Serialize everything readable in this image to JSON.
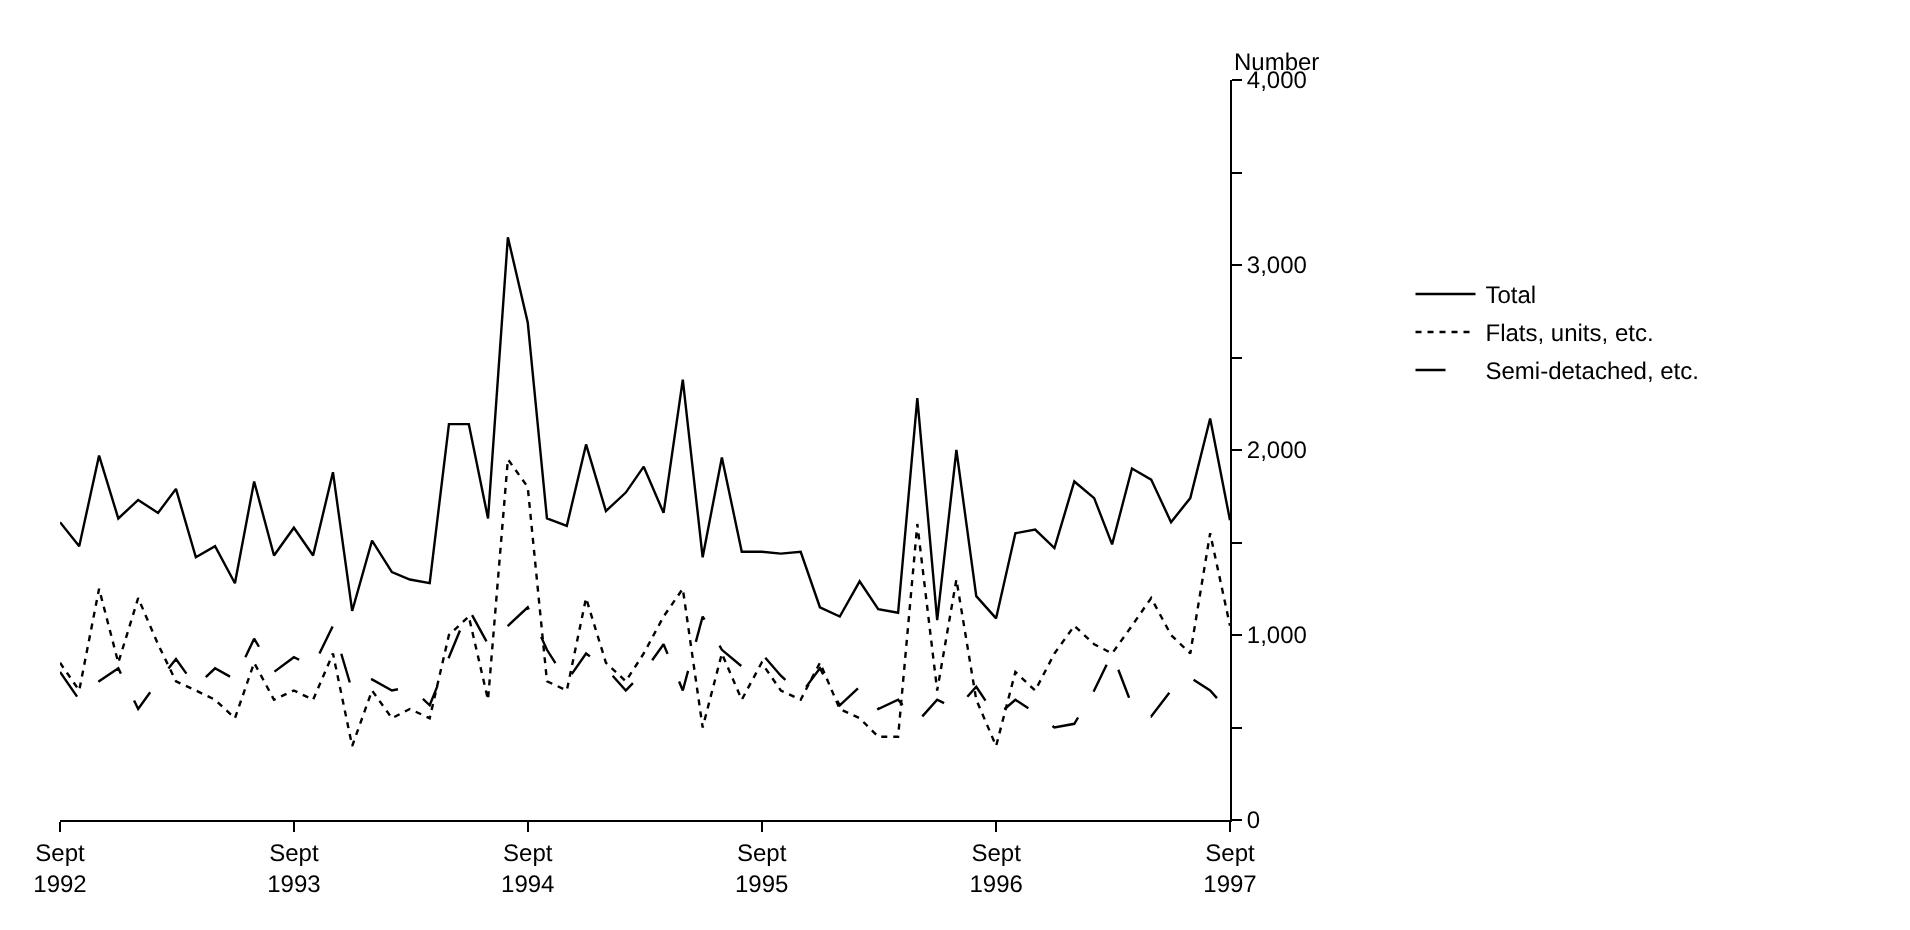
{
  "chart_data": {
    "type": "line",
    "x": [
      "1992-09",
      "1992-10",
      "1992-11",
      "1992-12",
      "1993-01",
      "1993-02",
      "1993-03",
      "1993-04",
      "1993-05",
      "1993-06",
      "1993-07",
      "1993-08",
      "1993-09",
      "1993-10",
      "1993-11",
      "1993-12",
      "1994-01",
      "1994-02",
      "1994-03",
      "1994-04",
      "1994-05",
      "1994-06",
      "1994-07",
      "1994-08",
      "1994-09",
      "1994-10",
      "1994-11",
      "1994-12",
      "1995-01",
      "1995-02",
      "1995-03",
      "1995-04",
      "1995-05",
      "1995-06",
      "1995-07",
      "1995-08",
      "1995-09",
      "1995-10",
      "1995-11",
      "1995-12",
      "1996-01",
      "1996-02",
      "1996-03",
      "1996-04",
      "1996-05",
      "1996-06",
      "1996-07",
      "1996-08",
      "1996-09",
      "1996-10",
      "1996-11",
      "1996-12",
      "1997-01",
      "1997-02",
      "1997-03",
      "1997-04",
      "1997-05",
      "1997-06",
      "1997-07",
      "1997-08",
      "1997-09"
    ],
    "series": [
      {
        "name": "Total",
        "color": "#000000",
        "line_style": "solid",
        "values": [
          1610,
          1480,
          1970,
          1630,
          1730,
          1660,
          1790,
          1420,
          1480,
          1280,
          1830,
          1430,
          1580,
          1430,
          1880,
          1130,
          1510,
          1340,
          1300,
          1280,
          2140,
          2140,
          1630,
          3150,
          2690,
          1630,
          1590,
          2030,
          1670,
          1770,
          1910,
          1660,
          2380,
          1420,
          1960,
          1450,
          1450,
          1440,
          1450,
          1150,
          1100,
          1290,
          1140,
          1120,
          2280,
          1080,
          2000,
          1210,
          1090,
          1550,
          1570,
          1470,
          1830,
          1740,
          1490,
          1900,
          1840,
          1610,
          1740,
          2170,
          1620
        ]
      },
      {
        "name": "Flats, units, etc.",
        "color": "#000000",
        "line_style": "dotted",
        "values": [
          850,
          700,
          1250,
          850,
          1200,
          950,
          750,
          700,
          650,
          550,
          850,
          650,
          700,
          650,
          900,
          400,
          700,
          550,
          600,
          550,
          1000,
          1100,
          650,
          1950,
          1800,
          750,
          700,
          1200,
          850,
          750,
          900,
          1100,
          1250,
          500,
          900,
          650,
          850,
          700,
          650,
          850,
          600,
          550,
          450,
          450,
          1600,
          700,
          1300,
          650,
          400,
          800,
          700,
          900,
          1050,
          950,
          900,
          1050,
          1200,
          1000,
          900,
          1550,
          1050
        ]
      },
      {
        "name": "Semi-detached, etc.",
        "color": "#000000",
        "line_style": "dashed",
        "values": [
          800,
          650,
          750,
          820,
          600,
          750,
          870,
          720,
          820,
          760,
          980,
          800,
          880,
          830,
          1050,
          700,
          760,
          700,
          720,
          620,
          880,
          1140,
          950,
          1050,
          1150,
          920,
          750,
          900,
          820,
          700,
          800,
          950,
          700,
          1100,
          920,
          830,
          900,
          780,
          680,
          820,
          620,
          720,
          600,
          650,
          530,
          650,
          600,
          720,
          560,
          650,
          580,
          500,
          520,
          700,
          900,
          620,
          560,
          700,
          770,
          700,
          580
        ]
      }
    ],
    "ylabel": "Number",
    "xlim": [
      "1992-09",
      "1997-09"
    ],
    "xticks": [
      {
        "value": "1992-09",
        "label": "Sept\n1992"
      },
      {
        "value": "1993-09",
        "label": "Sept\n1993"
      },
      {
        "value": "1994-09",
        "label": "Sept\n1994"
      },
      {
        "value": "1995-09",
        "label": "Sept\n1995"
      },
      {
        "value": "1996-09",
        "label": "Sept\n1996"
      },
      {
        "value": "1997-09",
        "label": "Sept\n1997"
      }
    ],
    "ylim": [
      0,
      4000
    ],
    "yticks": [
      0,
      {
        "value": 500,
        "label": null
      },
      {
        "value": 1000,
        "label": "1,000"
      },
      {
        "value": 1500,
        "label": null
      },
      {
        "value": 2000,
        "label": "2,000"
      },
      {
        "value": 2500,
        "label": null
      },
      {
        "value": 3000,
        "label": "3,000"
      },
      {
        "value": 3500,
        "label": null
      },
      {
        "value": 4000,
        "label": "4,000"
      }
    ],
    "legend": "right"
  }
}
